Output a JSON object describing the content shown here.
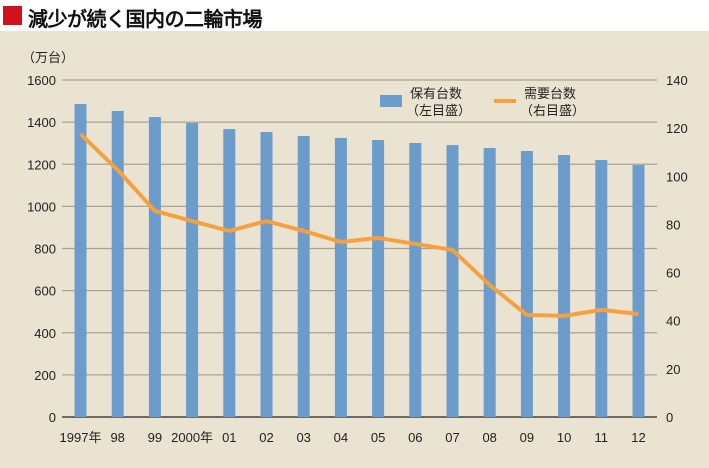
{
  "header": {
    "title": "減少が続く国内の二輪市場",
    "accent_color": "#d2101e"
  },
  "chart_data": {
    "type": "bar",
    "title": "減少が続く国内の二輪市場",
    "unit_label": "（万台）",
    "categories": [
      "1997年",
      "98",
      "99",
      "2000年",
      "01",
      "02",
      "03",
      "04",
      "05",
      "06",
      "07",
      "08",
      "09",
      "10",
      "11",
      "12"
    ],
    "series": [
      {
        "name": "保有台数",
        "sub": "（左目盛）",
        "type": "bar",
        "axis": "left",
        "color": "#6c9ccc",
        "values": [
          1486,
          1453,
          1424,
          1396,
          1367,
          1353,
          1334,
          1325,
          1315,
          1301,
          1291,
          1277,
          1263,
          1244,
          1220,
          1196
        ]
      },
      {
        "name": "需要台数",
        "sub": "（右目盛）",
        "type": "line",
        "axis": "right",
        "color": "#f7a040",
        "values": [
          117.6,
          102.6,
          85.6,
          81.4,
          77.3,
          81.4,
          77.3,
          72.7,
          74.4,
          71.9,
          69.4,
          54.8,
          42.4,
          42.0,
          44.5,
          42.8
        ]
      }
    ],
    "left_axis": {
      "ylim": [
        0,
        1600
      ],
      "ticks": [
        "0",
        "200",
        "400",
        "600",
        "800",
        "1000",
        "1200",
        "1400",
        "1600"
      ]
    },
    "right_axis": {
      "ylim": [
        0,
        140
      ],
      "ticks": [
        "0",
        "20",
        "40",
        "60",
        "80",
        "100",
        "120",
        "140"
      ]
    },
    "grid": true,
    "legend": "top-right"
  }
}
